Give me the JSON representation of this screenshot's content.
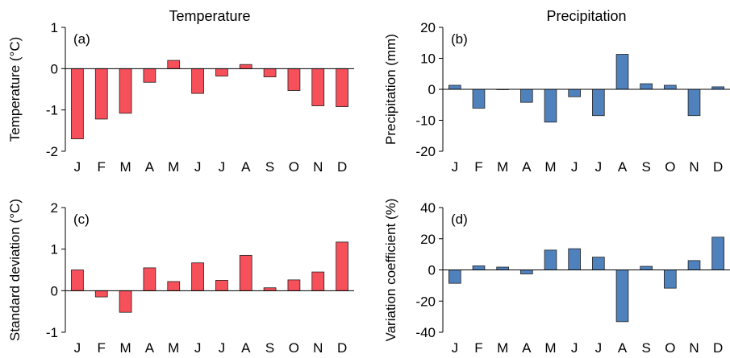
{
  "chart_data": [
    {
      "type": "bar",
      "title": "Temperature",
      "panel_label": "(a)",
      "ylabel": "Temperature (°C)",
      "xlabel": "",
      "categories": [
        "J",
        "F",
        "M",
        "A",
        "M",
        "J",
        "J",
        "A",
        "S",
        "O",
        "N",
        "D"
      ],
      "values": [
        -1.7,
        -1.22,
        -1.08,
        -0.33,
        0.2,
        -0.6,
        -0.18,
        0.1,
        -0.2,
        -0.53,
        -0.9,
        -0.92
      ],
      "ylim": [
        -2,
        1
      ],
      "yticks": [
        -2,
        -1,
        0,
        1
      ],
      "ytick_labels": [
        "-2",
        "-1",
        "0",
        "1"
      ],
      "color": "#f6505a",
      "grid": false
    },
    {
      "type": "bar",
      "title": "Precipitation",
      "panel_label": "(b)",
      "ylabel": "Precipitation (mm)",
      "xlabel": "",
      "categories": [
        "J",
        "F",
        "M",
        "A",
        "M",
        "J",
        "J",
        "A",
        "S",
        "O",
        "N",
        "D"
      ],
      "values": [
        1.3,
        -6.1,
        0.0,
        -4.2,
        -10.6,
        -2.4,
        -8.5,
        11.3,
        1.8,
        1.3,
        -8.5,
        0.8
      ],
      "ylim": [
        -20,
        20
      ],
      "yticks": [
        -20,
        -10,
        0,
        10,
        20
      ],
      "ytick_labels": [
        "-20",
        "-10",
        "0",
        "10",
        "20"
      ],
      "color": "#4f81bd",
      "grid": false
    },
    {
      "type": "bar",
      "title": "",
      "panel_label": "(c)",
      "ylabel": "Standard deviation (°C)",
      "xlabel": "",
      "categories": [
        "J",
        "F",
        "M",
        "A",
        "M",
        "J",
        "J",
        "A",
        "S",
        "O",
        "N",
        "D"
      ],
      "values": [
        0.5,
        -0.15,
        -0.52,
        0.55,
        0.22,
        0.67,
        0.25,
        0.85,
        0.07,
        0.26,
        0.45,
        1.17
      ],
      "ylim": [
        -1,
        2
      ],
      "yticks": [
        -1,
        0,
        1,
        2
      ],
      "ytick_labels": [
        "-1",
        "0",
        "1",
        "2"
      ],
      "color": "#f6505a",
      "grid": false
    },
    {
      "type": "bar",
      "title": "",
      "panel_label": "(d)",
      "ylabel": "Variation coefficient (%)",
      "xlabel": "",
      "categories": [
        "J",
        "F",
        "M",
        "A",
        "M",
        "J",
        "J",
        "A",
        "S",
        "O",
        "N",
        "D"
      ],
      "values": [
        -8.6,
        2.6,
        1.8,
        -2.6,
        12.7,
        13.6,
        8.2,
        -33.2,
        2.3,
        -11.7,
        6.0,
        21.0
      ],
      "ylim": [
        -40,
        40
      ],
      "yticks": [
        -40,
        -20,
        0,
        20,
        40
      ],
      "ytick_labels": [
        "-40",
        "-20",
        "0",
        "20",
        "40"
      ],
      "color": "#4f81bd",
      "grid": false
    }
  ]
}
